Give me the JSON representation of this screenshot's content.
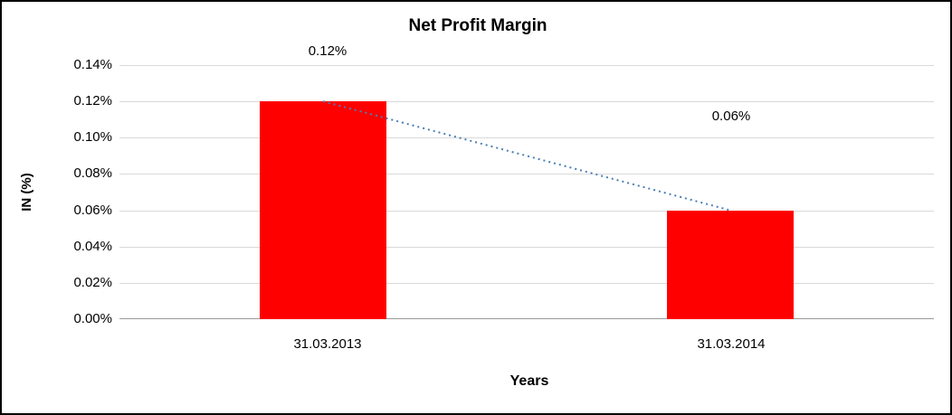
{
  "chart_data": {
    "type": "bar",
    "title": "Net Profit Margin",
    "xlabel": "Years",
    "ylabel": "IN (%)",
    "categories": [
      "31.03.2013",
      "31.03.2014"
    ],
    "values": [
      0.12,
      0.06
    ],
    "data_labels": [
      "0.12%",
      "0.06%"
    ],
    "ytick_labels": [
      "0.00%",
      "0.02%",
      "0.04%",
      "0.06%",
      "0.08%",
      "0.10%",
      "0.12%",
      "0.14%"
    ],
    "ylim": [
      0,
      0.14
    ],
    "grid": true,
    "legend": false,
    "bar_color": "#ff0000",
    "trendline_color": "#4a7fb5",
    "trendline_style": "dotted"
  }
}
